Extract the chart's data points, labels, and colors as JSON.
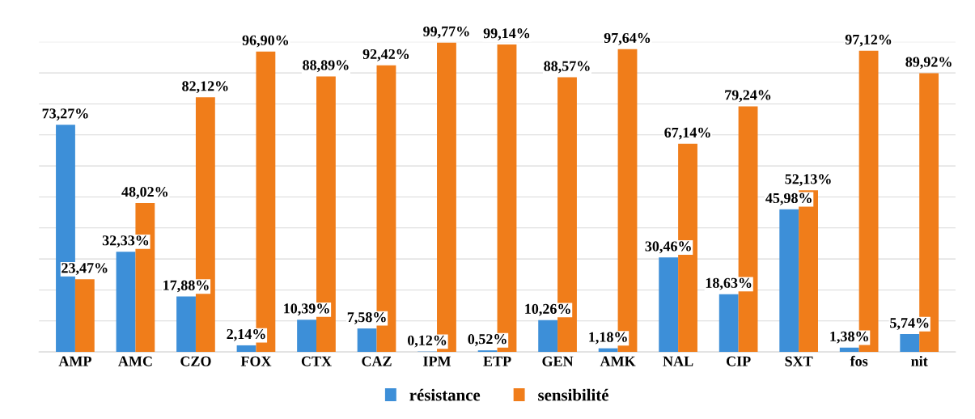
{
  "chart_data": {
    "type": "bar",
    "categories": [
      "AMP",
      "AMC",
      "CZO",
      "FOX",
      "CTX",
      "CAZ",
      "IPM",
      "ETP",
      "GEN",
      "AMK",
      "NAL",
      "CIP",
      "SXT",
      "fos",
      "nit"
    ],
    "series": [
      {
        "name": "résistance",
        "color": "#3d8fd8",
        "values": [
          73.27,
          32.33,
          17.88,
          2.14,
          10.39,
          7.58,
          0.12,
          0.52,
          10.26,
          1.18,
          30.46,
          18.63,
          45.98,
          1.38,
          5.74
        ],
        "value_labels": [
          "73,27%",
          "32,33%",
          "17,88%",
          "2,14%",
          "10,39%",
          "7,58%",
          "0,12%",
          "0,52%",
          "10,26%",
          "1,18%",
          "30,46%",
          "18,63%",
          "45,98%",
          "1,38%",
          "5,74%"
        ]
      },
      {
        "name": "sensibilité",
        "color": "#f07d1a",
        "values": [
          23.47,
          48.02,
          82.12,
          96.9,
          88.89,
          92.42,
          99.77,
          99.14,
          88.57,
          97.64,
          67.14,
          79.24,
          52.13,
          97.12,
          89.92
        ],
        "value_labels": [
          "23,47%",
          "48,02%",
          "82,12%",
          "96,90%",
          "88,89%",
          "92,42%",
          "99,77%",
          "99,14%",
          "88,57%",
          "97,64%",
          "67,14%",
          "79,24%",
          "52,13%",
          "97,12%",
          "89,92%"
        ]
      }
    ],
    "ylim": [
      0,
      100
    ],
    "yticks": [
      {
        "value": 0,
        "label": null
      },
      {
        "value": 10,
        "label": null
      },
      {
        "value": 20,
        "label": null
      },
      {
        "value": 30,
        "label": null
      },
      {
        "value": 40,
        "label": null
      },
      {
        "value": 50,
        "label": null
      },
      {
        "value": 60,
        "label": null
      },
      {
        "value": 70,
        "label": null
      },
      {
        "value": 80,
        "label": null
      },
      {
        "value": 90,
        "label": null
      },
      {
        "value": 100,
        "label": null
      }
    ],
    "tick_labels": "x",
    "grid": "y",
    "legend": "bottom"
  }
}
